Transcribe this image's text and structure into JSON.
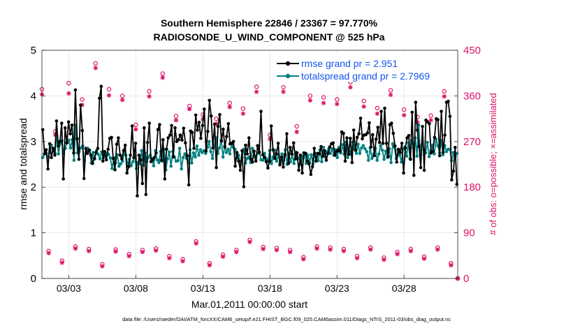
{
  "chart_data": {
    "type": "line",
    "title": "Southern Hemisphere 22846 / 23367 = 97.770%",
    "subtitle": "RADIOSONDE_U_WIND_COMPONENT @ 525 hPa",
    "xlabel": "Mar.01,2011 00:00:00 start",
    "ylabel_left": "rmse and totalspread",
    "ylabel_right": "# of obs: o=possible; ×=assimilated",
    "footer": "data file: /Users/raeder/DAI/ATM_forcXX/CAM6_setup/f.e21.FHIST_BGC.f09_025.CAM6assim.011/Diags_NTrS_2011-03/obs_diag_output.nc",
    "ylim_left": [
      0,
      5
    ],
    "ylim_right": [
      0,
      450
    ],
    "xlim_days": [
      1,
      32
    ],
    "yticks_left": [
      "0",
      "1",
      "2",
      "3",
      "4",
      "5"
    ],
    "yticks_right": [
      "0",
      "90",
      "180",
      "270",
      "360",
      "450"
    ],
    "xticks": [
      {
        "day": 3,
        "label": "03/03"
      },
      {
        "day": 8,
        "label": "03/08"
      },
      {
        "day": 13,
        "label": "03/13"
      },
      {
        "day": 18,
        "label": "03/18"
      },
      {
        "day": 23,
        "label": "03/23"
      },
      {
        "day": 28,
        "label": "03/28"
      }
    ],
    "colors": {
      "rmse": "#000000",
      "spread": "#008080",
      "obs": "#dd1166",
      "legend_text": "#1155ee",
      "grid": "#e3e3e3"
    },
    "series": [
      {
        "name": "rmse grand pr = 2.951",
        "values": [
          3.26,
          2.73,
          2.82,
          2.4,
          2.95,
          2.65,
          2.85,
          2.7,
          3.45,
          2.9,
          3.0,
          3.4,
          2.18,
          3.3,
          2.97,
          3.43,
          3.17,
          3.36,
          2.75,
          4.13,
          3.06,
          2.61,
          3.8,
          3.24,
          2.19,
          2.85,
          2.74,
          2.81,
          2.7,
          2.52,
          2.63,
          2.76,
          2.85,
          3.95,
          4.21,
          2.57,
          2.78,
          2.6,
          2.83,
          3.07,
          3.09,
          2.63,
          2.38,
          2.94,
          3.08,
          2.7,
          2.62,
          2.8,
          2.92,
          2.31,
          2.45,
          2.7,
          3.34,
          2.65,
          2.96,
          1.81,
          2.7,
          2.6,
          2.08,
          3.3,
          1.84,
          2.98,
          3.4,
          2.56,
          2.6,
          2.65,
          2.75,
          3.26,
          3.37,
          2.59,
          3.04,
          2.18,
          2.83,
          3.08,
          3.14,
          3.35,
          2.66,
          3.3,
          3.0,
          3.04,
          3.14,
          3.03,
          3.29,
          2.97,
          2.69,
          2.05,
          3.23,
          3.2,
          2.85,
          3.58,
          3.25,
          3.42,
          3.07,
          3.35,
          3.71,
          2.79,
          3.22,
          3.9,
          3.56,
          2.86,
          3.38,
          2.43,
          3.33,
          3.59,
          3.01,
          3.27,
          2.88,
          3.11,
          3.39,
          2.95,
          2.96,
          3.0,
          2.46,
          2.76,
          2.57,
          2.37,
          2.8,
          2.01,
          2.92,
          2.73,
          3.08,
          2.62,
          2.55,
          2.79,
          2.57,
          2.91,
          2.76,
          3.66,
          2.71,
          2.65,
          2.56,
          2.42,
          2.57,
          3.34,
          2.82,
          2.63,
          2.73,
          2.96,
          2.49,
          2.66,
          2.44,
          2.71,
          3.17,
          2.52,
          2.87,
          2.73,
          2.97,
          2.62,
          2.75,
          2.37,
          2.7,
          2.31,
          2.75,
          2.74,
          2.57,
          2.51,
          2.28,
          2.45,
          2.85,
          2.57,
          2.74,
          2.73,
          2.89,
          2.68,
          2.8,
          2.59,
          2.74,
          2.88,
          2.95,
          2.97,
          2.7,
          2.78,
          2.82,
          2.79,
          3.21,
          3.18,
          2.57,
          3.08,
          2.72,
          3.07,
          2.54,
          3.25,
          2.81,
          3.09,
          3.17,
          3.51,
          3.06,
          3.14,
          3.15,
          3.19,
          3.41,
          2.88,
          3.15,
          2.69,
          3.05,
          3.31,
          2.98,
          3.66,
          2.96,
          3.73,
          2.96,
          2.67,
          3.37,
          3.4,
          3.18,
          2.9,
          2.55,
          2.83,
          2.76,
          2.96,
          2.31,
          2.86,
          3.08,
          3.13,
          2.61,
          3.64,
          2.26,
          3.86,
          3.25,
          2.89,
          2.43,
          3.33,
          2.37,
          3.47,
          3.43,
          3.39,
          2.75,
          2.78,
          3.09,
          3.5,
          3.48,
          2.69,
          3.66,
          2.76,
          3.14,
          3.86,
          3.88,
          3.55,
          2.16,
          2.35,
          2.87,
          2.06
        ]
      },
      {
        "name": "totalspread grand pr = 2.7969",
        "values": [
          2.65,
          2.73,
          2.74,
          2.66,
          2.76,
          2.92,
          2.81,
          2.74,
          3.12,
          2.73,
          2.95,
          3.02,
          2.74,
          2.85,
          2.99,
          3.03,
          2.86,
          3.04,
          2.59,
          3.36,
          2.75,
          2.78,
          2.86,
          2.9,
          2.58,
          2.74,
          2.85,
          2.81,
          2.53,
          2.76,
          2.62,
          2.8,
          2.72,
          2.62,
          2.77,
          2.64,
          2.68,
          2.74,
          2.72,
          2.64,
          2.41,
          2.64,
          2.53,
          2.71,
          2.46,
          2.51,
          2.57,
          2.75,
          2.7,
          2.5,
          2.61,
          2.47,
          2.56,
          2.7,
          2.41,
          2.54,
          2.52,
          2.8,
          2.48,
          2.75,
          2.56,
          2.65,
          2.7,
          2.63,
          2.47,
          2.8,
          2.6,
          2.54,
          2.78,
          2.57,
          2.83,
          2.38,
          2.62,
          2.77,
          2.46,
          2.78,
          2.66,
          2.57,
          2.58,
          2.85,
          2.4,
          2.65,
          2.73,
          2.63,
          2.53,
          2.82,
          2.53,
          2.75,
          2.66,
          2.9,
          2.7,
          2.82,
          2.76,
          2.8,
          2.74,
          2.87,
          3.0,
          2.78,
          2.63,
          2.91,
          3.08,
          2.74,
          2.86,
          3.04,
          2.66,
          2.9,
          2.76,
          2.83,
          2.73,
          2.96,
          2.87,
          2.83,
          2.64,
          2.7,
          2.51,
          2.65,
          2.83,
          2.53,
          2.63,
          2.66,
          2.54,
          2.85,
          2.68,
          2.63,
          2.74,
          2.77,
          2.6,
          2.59,
          2.74,
          2.62,
          2.56,
          2.8,
          2.52,
          2.66,
          2.81,
          2.57,
          2.71,
          2.53,
          2.73,
          2.59,
          2.82,
          2.5,
          2.74,
          2.56,
          2.71,
          2.52,
          2.77,
          2.62,
          2.64,
          2.5,
          2.67,
          2.7,
          2.52,
          2.7,
          2.55,
          2.71,
          2.51,
          2.74,
          2.67,
          2.58,
          2.82,
          2.56,
          2.87,
          2.66,
          2.77,
          2.83,
          2.74,
          2.84,
          2.7,
          2.82,
          2.65,
          2.87,
          2.75,
          2.93,
          2.72,
          2.99,
          2.65,
          2.78,
          2.72,
          2.99,
          2.84,
          2.74,
          2.94,
          2.74,
          2.86,
          2.91,
          2.84,
          2.78,
          2.59,
          2.86,
          2.63,
          2.73,
          2.85,
          2.59,
          2.73,
          2.91,
          2.81,
          2.61,
          2.79,
          2.65,
          2.84,
          2.54,
          2.95,
          2.87,
          2.63,
          2.81,
          2.7,
          2.55,
          2.83,
          2.88,
          2.68,
          2.97,
          2.63,
          3.02,
          2.86,
          3.08,
          2.68,
          3.36,
          2.71,
          2.93,
          2.82,
          2.75,
          2.98,
          2.67,
          2.8,
          2.92,
          2.73,
          3.05,
          2.91,
          2.75,
          3.02,
          2.71,
          2.91,
          2.78,
          2.83,
          2.83,
          2.58,
          2.76,
          2.67,
          2.74
        ]
      }
    ],
    "obs_counts": {
      "days_00z": [
        1.0,
        2.0,
        3.0,
        4.0,
        5.0,
        6.0,
        7.0,
        8.0,
        9.0,
        10.0,
        11.0,
        12.0,
        13.0,
        14.0,
        15.0,
        16.0,
        17.0,
        18.0,
        19.0,
        20.0,
        21.0,
        22.0,
        23.0,
        24.0,
        25.0,
        26.0,
        27.0,
        28.0,
        29.0,
        30.0,
        31.0,
        32.0
      ],
      "possible_00z": [
        373,
        290,
        385,
        353,
        424,
        373,
        360,
        303,
        369,
        404,
        320,
        340,
        323,
        315,
        346,
        335,
        378,
        283,
        377,
        300,
        360,
        357,
        353,
        387,
        350,
        336,
        371,
        333,
        318,
        321,
        369,
        0
      ],
      "assimilated_00z": [
        363,
        283,
        365,
        342,
        415,
        361,
        352,
        294,
        359,
        396,
        312,
        334,
        314,
        305,
        338,
        325,
        368,
        275,
        368,
        289,
        351,
        346,
        344,
        377,
        339,
        325,
        362,
        322,
        308,
        312,
        359,
        0
      ],
      "days_12z": [
        1.5,
        2.5,
        3.5,
        4.5,
        5.5,
        6.5,
        7.5,
        8.5,
        9.5,
        10.5,
        11.5,
        12.5,
        13.5,
        14.5,
        15.5,
        16.5,
        17.5,
        18.5,
        19.5,
        20.5,
        21.5,
        22.5,
        23.5,
        24.5,
        25.5,
        26.5,
        27.5,
        28.5,
        29.5,
        30.5,
        31.5
      ],
      "possible_12z": [
        54,
        35,
        63,
        58,
        28,
        57,
        48,
        56,
        59,
        44,
        38,
        73,
        30,
        47,
        56,
        76,
        62,
        60,
        56,
        42,
        63,
        61,
        58,
        44,
        61,
        41,
        52,
        58,
        43,
        61,
        30
      ],
      "assimilated_12z": [
        50,
        31,
        59,
        54,
        24,
        53,
        44,
        52,
        55,
        40,
        34,
        69,
        26,
        43,
        52,
        72,
        58,
        56,
        52,
        38,
        59,
        57,
        54,
        40,
        57,
        37,
        48,
        54,
        39,
        57,
        26
      ]
    }
  }
}
